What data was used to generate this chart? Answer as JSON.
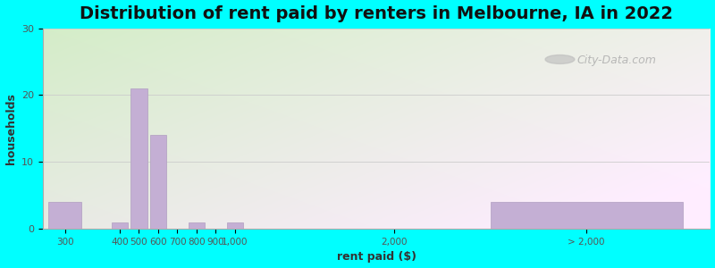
{
  "title": "Distribution of rent paid by renters in Melbourne, IA in 2022",
  "xlabel": "rent paid ($)",
  "ylabel": "households",
  "bar_color": "#c4afd4",
  "bar_edge_color": "#b09ec0",
  "bg_color_top_left": "#d8f0d0",
  "bg_color_bottom_right": "#f0eeff",
  "outer_bg": "#00ffff",
  "yticks": [
    0,
    10,
    20,
    30
  ],
  "ylim": [
    0,
    30
  ],
  "tick_labels": [
    "300",
    "400",
    "500",
    "600",
    "700",
    "800",
    "900",
    "1,000",
    "2,000",
    "> 2,000"
  ],
  "values": [
    4,
    1,
    21,
    14,
    0,
    1,
    0,
    1,
    0,
    4
  ],
  "watermark": "City-Data.com",
  "title_fontsize": 14,
  "axis_label_fontsize": 9,
  "tick_fontsize": 7.5
}
